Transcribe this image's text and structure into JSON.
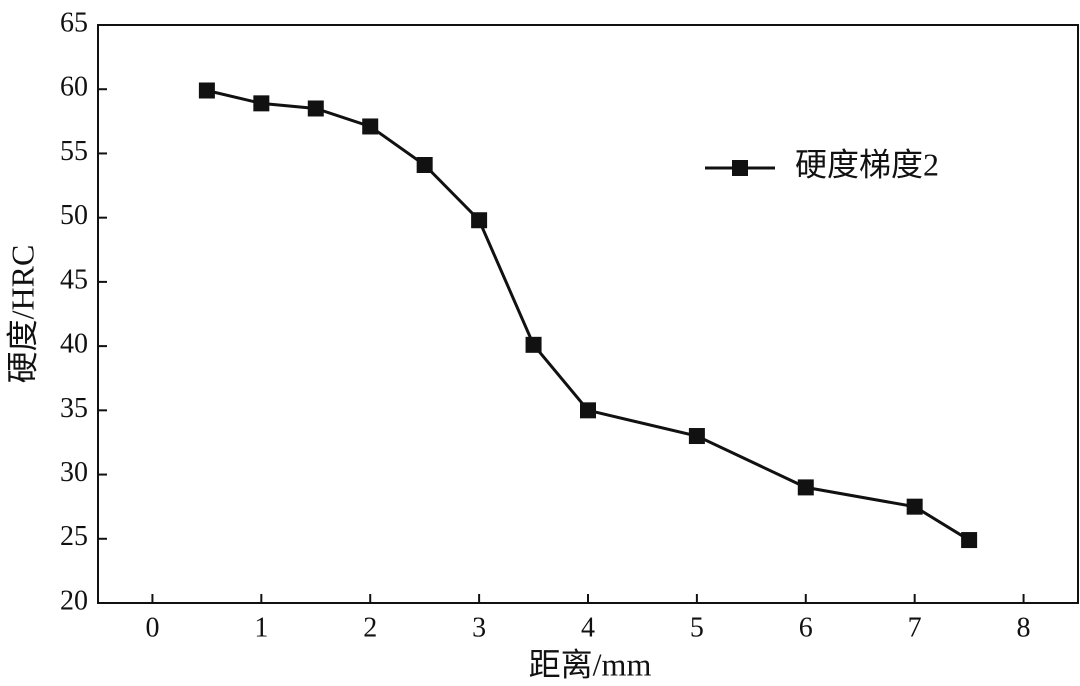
{
  "chart_data": {
    "type": "line",
    "xlabel": "距离/mm",
    "ylabel": "硬度/HRC",
    "x": [
      0.5,
      1,
      1.5,
      2,
      2.5,
      3,
      3.5,
      4,
      5,
      6,
      7,
      7.5
    ],
    "series": [
      {
        "name": "硬度梯度2",
        "color": "#111111",
        "values": [
          59.9,
          58.9,
          58.5,
          57.1,
          54.1,
          49.8,
          40.1,
          35.0,
          33.0,
          29.0,
          27.5,
          24.9
        ]
      }
    ],
    "xlim": [
      -0.5,
      8.5
    ],
    "xticks": [
      0,
      1,
      2,
      3,
      4,
      5,
      6,
      7,
      8
    ],
    "ylim": [
      20,
      65
    ],
    "yticks": [
      20,
      25,
      30,
      35,
      40,
      45,
      50,
      55,
      60,
      65
    ],
    "legend": "upper right",
    "grid": false
  }
}
